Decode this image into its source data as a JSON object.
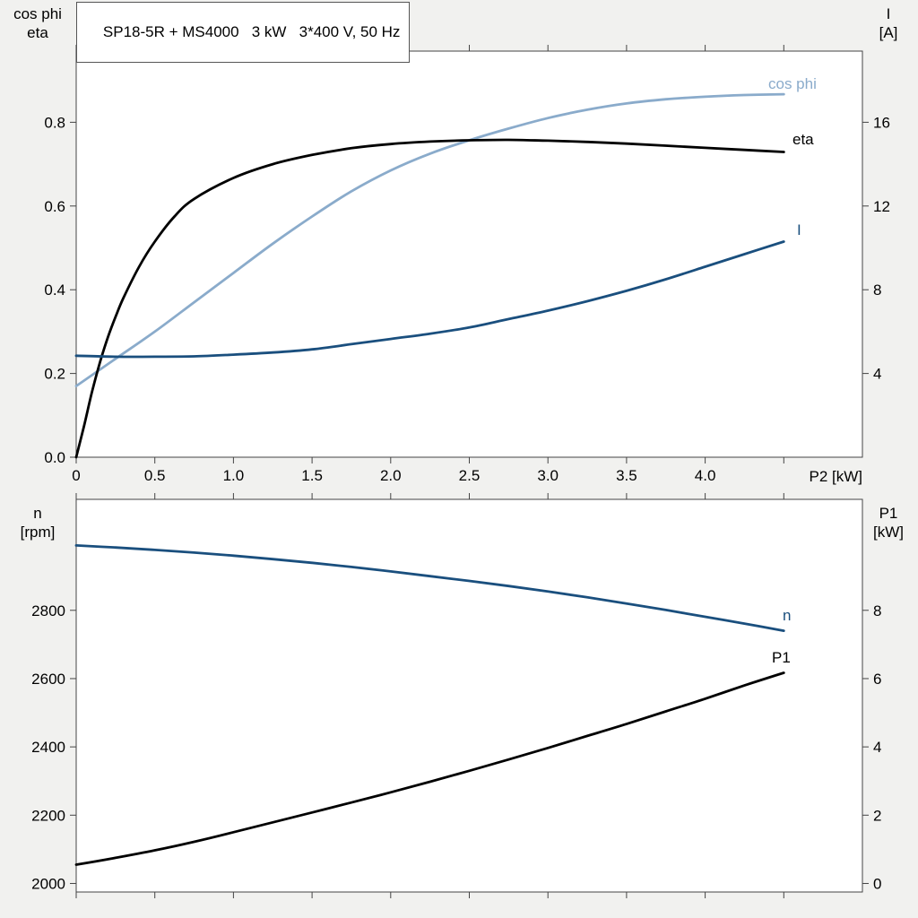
{
  "page_bg": "#f1f1ef",
  "plot_bg": "#ffffff",
  "axis_color": "#444444",
  "chart_data": [
    {
      "type": "line",
      "title": "SP18-5R + MS4000   3 kW   3*400 V, 50 Hz",
      "xlabel": "P2 [kW]",
      "xlim": [
        0,
        5.0
      ],
      "x_ticks": [
        0,
        0.5,
        1.0,
        1.5,
        2.0,
        2.5,
        3.0,
        3.5,
        4.0,
        4.5
      ],
      "x_tick_labels": [
        "0",
        "0.5",
        "1.0",
        "1.5",
        "2.0",
        "2.5",
        "3.0",
        "3.5",
        "4.0",
        ""
      ],
      "grid": false,
      "legend_position": "curve-end-labels",
      "left_axis": {
        "label_lines": [
          "cos phi",
          "eta"
        ],
        "lim": [
          0,
          0.97
        ],
        "ticks": [
          0.0,
          0.2,
          0.4,
          0.6,
          0.8
        ],
        "tick_labels": [
          "0.0",
          "0.2",
          "0.4",
          "0.6",
          "0.8"
        ]
      },
      "right_axis": {
        "label_lines": [
          "I",
          "[A]"
        ],
        "lim": [
          0,
          19.4
        ],
        "ticks": [
          4,
          8,
          12,
          16
        ],
        "tick_labels": [
          "4",
          "8",
          "12",
          "16"
        ]
      },
      "series": [
        {
          "name": "cos phi",
          "axis": "left",
          "color": "#8aabcb",
          "width": 2.8,
          "x": [
            0,
            0.25,
            0.5,
            0.75,
            1.0,
            1.25,
            1.5,
            1.75,
            2.0,
            2.25,
            2.5,
            2.75,
            3.0,
            3.25,
            3.5,
            3.75,
            4.0,
            4.25,
            4.5
          ],
          "y": [
            0.17,
            0.235,
            0.3,
            0.37,
            0.44,
            0.51,
            0.575,
            0.635,
            0.685,
            0.725,
            0.757,
            0.785,
            0.81,
            0.83,
            0.845,
            0.855,
            0.861,
            0.865,
            0.867
          ]
        },
        {
          "name": "eta",
          "axis": "left",
          "color": "#000000",
          "width": 2.8,
          "x": [
            0,
            0.05,
            0.1,
            0.15,
            0.2,
            0.25,
            0.3,
            0.4,
            0.5,
            0.625,
            0.75,
            1.0,
            1.25,
            1.5,
            1.75,
            2.0,
            2.25,
            2.5,
            2.75,
            3.0,
            3.25,
            3.5,
            3.75,
            4.0,
            4.25,
            4.5
          ],
          "y": [
            0,
            0.075,
            0.155,
            0.225,
            0.285,
            0.335,
            0.38,
            0.455,
            0.515,
            0.575,
            0.617,
            0.667,
            0.7,
            0.722,
            0.738,
            0.748,
            0.754,
            0.757,
            0.758,
            0.756,
            0.753,
            0.749,
            0.744,
            0.739,
            0.734,
            0.729
          ]
        },
        {
          "name": "I",
          "axis": "right",
          "color": "#1a4f7e",
          "width": 2.8,
          "x": [
            0,
            0.25,
            0.5,
            0.75,
            1.0,
            1.25,
            1.5,
            1.75,
            2.0,
            2.25,
            2.5,
            2.75,
            3.0,
            3.25,
            3.5,
            3.75,
            4.0,
            4.25,
            4.5
          ],
          "y": [
            4.85,
            4.8,
            4.8,
            4.82,
            4.9,
            5.0,
            5.15,
            5.4,
            5.65,
            5.9,
            6.2,
            6.6,
            7.0,
            7.45,
            7.95,
            8.5,
            9.1,
            9.7,
            10.3
          ]
        }
      ]
    },
    {
      "type": "line",
      "title": "",
      "xlabel": "",
      "xlim": [
        0,
        5.0
      ],
      "x_ticks": [
        0,
        0.5,
        1.0,
        1.5,
        2.0,
        2.5,
        3.0,
        3.5,
        4.0,
        4.5
      ],
      "x_tick_labels": [
        "",
        "",
        "",
        "",
        "",
        "",
        "",
        "",
        "",
        ""
      ],
      "grid": false,
      "legend_position": "curve-end-labels",
      "left_axis": {
        "label_lines": [
          "n",
          "[rpm]"
        ],
        "lim": [
          1975,
          3125
        ],
        "ticks": [
          2000,
          2200,
          2400,
          2600,
          2800
        ],
        "tick_labels": [
          "2000",
          "2200",
          "2400",
          "2600",
          "2800"
        ]
      },
      "right_axis": {
        "label_lines": [
          "P1",
          "[kW]"
        ],
        "lim": [
          -0.25,
          11.25
        ],
        "ticks": [
          0,
          2,
          4,
          6,
          8
        ],
        "tick_labels": [
          "0",
          "2",
          "4",
          "6",
          "8"
        ]
      },
      "series": [
        {
          "name": "n",
          "axis": "left",
          "color": "#1a4f7e",
          "width": 2.8,
          "x": [
            0,
            0.25,
            0.5,
            0.75,
            1.0,
            1.25,
            1.5,
            1.75,
            2.0,
            2.25,
            2.5,
            2.75,
            3.0,
            3.25,
            3.5,
            3.75,
            4.0,
            4.25,
            4.5
          ],
          "y": [
            2990,
            2984,
            2977,
            2969,
            2960,
            2950,
            2939,
            2927,
            2914,
            2900,
            2886,
            2871,
            2855,
            2838,
            2820,
            2801,
            2781,
            2761,
            2740
          ]
        },
        {
          "name": "P1",
          "axis": "right",
          "color": "#000000",
          "width": 2.8,
          "x": [
            0,
            0.25,
            0.5,
            0.75,
            1.0,
            1.25,
            1.5,
            1.75,
            2.0,
            2.25,
            2.5,
            2.75,
            3.0,
            3.25,
            3.5,
            3.75,
            4.0,
            4.25,
            4.5
          ],
          "y": [
            0.55,
            0.75,
            0.97,
            1.22,
            1.5,
            1.79,
            2.08,
            2.37,
            2.67,
            2.98,
            3.3,
            3.63,
            3.97,
            4.32,
            4.67,
            5.04,
            5.41,
            5.8,
            6.17
          ]
        }
      ]
    }
  ]
}
